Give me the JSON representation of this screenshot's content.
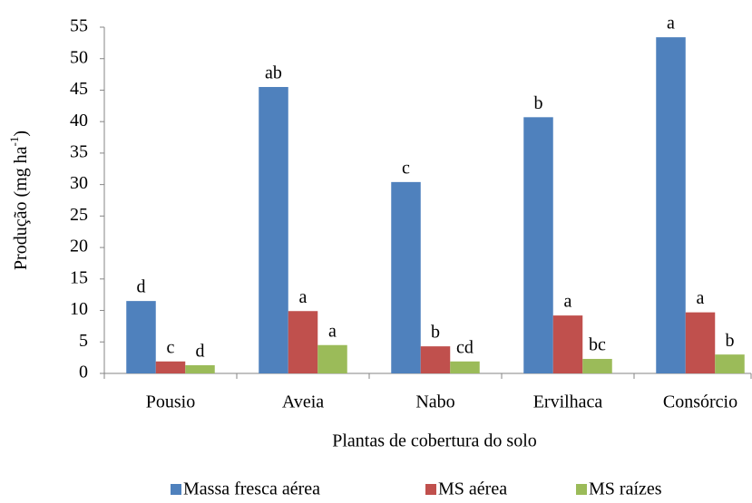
{
  "chart_data": {
    "type": "bar",
    "y_label": [
      "Produção (mg ha",
      "-1",
      ")"
    ],
    "x_label": "Plantas de cobertura do solo",
    "categories": [
      "Pousio",
      "Aveia",
      "Nabo",
      "Ervilhaca",
      "Consórcio"
    ],
    "series": [
      {
        "name": "Massa fresca aérea",
        "color": "#4f81bd",
        "values": [
          11.5,
          45.5,
          30.4,
          40.7,
          53.4
        ],
        "letters": [
          "d",
          "ab",
          "c",
          "b",
          "a"
        ]
      },
      {
        "name": "MS aérea",
        "color": "#c0504d",
        "values": [
          1.9,
          9.9,
          4.3,
          9.2,
          9.7
        ],
        "letters": [
          "c",
          "a",
          "b",
          "a",
          "a"
        ]
      },
      {
        "name": "MS raízes",
        "color": "#9bbb59",
        "values": [
          1.3,
          4.5,
          1.9,
          2.3,
          3.0
        ],
        "letters": [
          "d",
          "a",
          "cd",
          "bc",
          "b"
        ]
      }
    ],
    "ylim": [
      0,
      55
    ],
    "yticks": [
      0,
      5,
      10,
      15,
      20,
      25,
      30,
      35,
      40,
      45,
      50,
      55
    ],
    "grid": false,
    "legend": "bottom"
  }
}
